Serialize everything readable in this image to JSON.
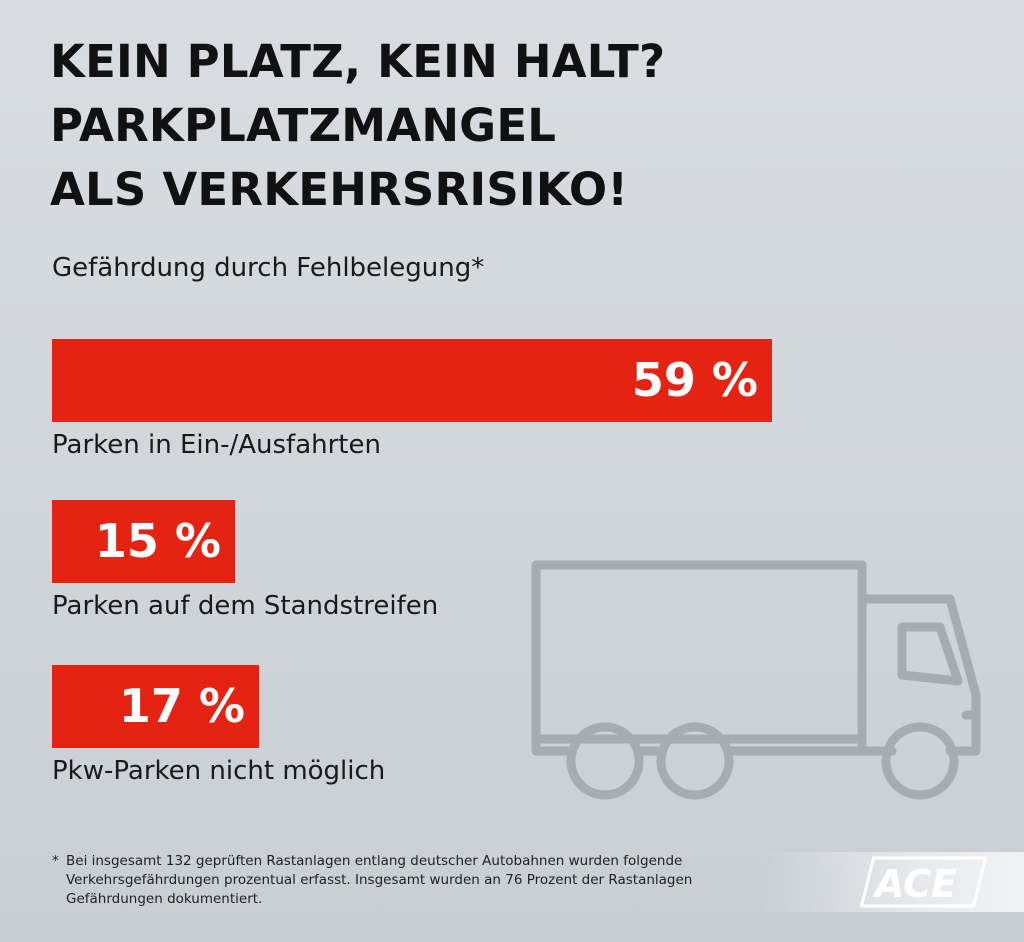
{
  "title": {
    "line1": "KEIN PLATZ, KEIN HALT?",
    "line2": "PARKPLATZMANGEL",
    "line3": "ALS VERKEHRSRISIKO!"
  },
  "chart_data": {
    "type": "bar",
    "orientation": "horizontal",
    "title": "KEIN PLATZ, KEIN HALT? PARKPLATZMANGEL ALS VERKEHRSRISIKO!",
    "subtitle": "Gefährdung durch Fehlbelegung*",
    "categories": [
      "Parken in Ein-/Ausfahrten",
      "Parken auf dem Standstreifen",
      "Pkw-Parken nicht möglich"
    ],
    "values": [
      59,
      15,
      17
    ],
    "value_labels": [
      "59 %",
      "15 %",
      "17 %"
    ],
    "unit": "%",
    "xlim": [
      0,
      100
    ],
    "bar_color": "#e42313",
    "grid": false
  },
  "footnote": {
    "marker": "*",
    "text": "Bei insgesamt 132 geprüften Rastanlagen entlang deutscher Autobahnen wurden folgende Verkehrsgefährdungen prozentual erfasst. Insgesamt wurden an 76 Prozent der Rastanlagen Gefährdungen dokumentiert."
  },
  "logo": {
    "text": "ACE"
  },
  "icons": {
    "illustration": "truck-icon"
  },
  "colors": {
    "bar": "#e42313",
    "bar_text": "#ffffff",
    "truck": "#a7acb1",
    "logo": "#ffffff"
  }
}
